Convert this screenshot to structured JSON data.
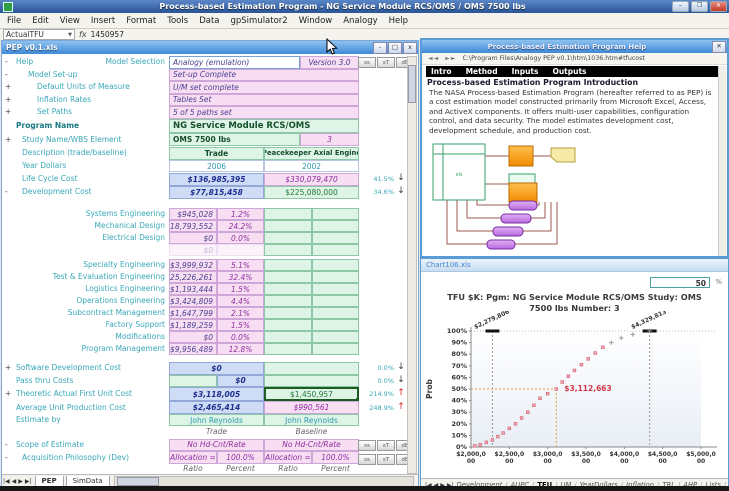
{
  "app": {
    "title": "Process-based Estimation Program - NG Service Module RCS/OMS / OMS 7500 lbs",
    "controls": {
      "minimize": "–",
      "maximize": "❐",
      "close": "✕"
    }
  },
  "menu_items": [
    "File",
    "Edit",
    "View",
    "Insert",
    "Format",
    "Tools",
    "Data",
    "gpSimulator2",
    "Window",
    "Analogy",
    "Help"
  ],
  "formula_bar": {
    "name_box": "ActualTFU",
    "fx_label": "fx",
    "value": "1450957"
  },
  "workbook": {
    "title": "PEP v0.1.xls",
    "controls": {
      "minimize": "-",
      "maximize": "□",
      "close": "x"
    },
    "mini_buttons": [
      "ss",
      "sT",
      "dB"
    ],
    "setup_rows": [
      {
        "prefix": "-",
        "label": "Help",
        "field": "Model Selection",
        "value": "Analogy (emulation)",
        "value2": "Version 3.0"
      },
      {
        "prefix": "-",
        "label": "Model Set-up",
        "value": "Set-up Complete"
      },
      {
        "prefix": "+",
        "label": "Default Units of Measure",
        "value": "U/M set complete"
      },
      {
        "prefix": "+",
        "label": "Inflation Rates",
        "value": "Tables Set"
      },
      {
        "prefix": "+",
        "label": "Set Paths",
        "value": "5 of 5 paths set"
      }
    ],
    "program": {
      "label": "Program Name",
      "value": "NG Service Module RCS/OMS",
      "study_prefix": "+",
      "study_label": "Study Name/WBS Element",
      "study_value": "OMS 7500 lbs",
      "study_number": "3"
    },
    "columns": {
      "description_label": "Description (trade/baseline)",
      "trade": "Trade",
      "baseline": "Peacekeeper Axial Engine",
      "footer_trade": "Trade",
      "footer_baseline": "Baseline"
    },
    "summary_rows": [
      {
        "label": "Year Dollars",
        "trade": "2006",
        "baseline": "2002"
      },
      {
        "label": "Life Cycle Cost",
        "trade": "$136,985,395",
        "baseline": "$330,079,470",
        "pct": "41.5%",
        "dir": "down"
      },
      {
        "prefix": "-",
        "label": "Development Cost",
        "trade": "$77,815,458",
        "baseline": "$225,080,000",
        "pct": "34.6%",
        "dir": "down"
      }
    ],
    "cost_rows": [
      {
        "label": "Systems Engineering",
        "amount": "$945,028",
        "pct": "1.2%"
      },
      {
        "label": "Mechanical Design",
        "amount": "$18,793,552",
        "pct": "24.2%"
      },
      {
        "label": "Electrical Design",
        "amount": "$0",
        "pct": "0.0%"
      },
      {
        "label": "",
        "amount": "$0",
        "pct": "",
        "faint": true
      },
      {
        "label": "Specialty Engineering",
        "amount": "$3,999,932",
        "pct": "5.1%"
      },
      {
        "label": "Test & Evaluation Engineering",
        "amount": "$25,226,261",
        "pct": "32.4%"
      },
      {
        "label": "Logistics Engineering",
        "amount": "$1,193,444",
        "pct": "1.5%"
      },
      {
        "label": "Operations Engineering",
        "amount": "$3,424,809",
        "pct": "4.4%"
      },
      {
        "label": "Subcontract Management",
        "amount": "$1,647,799",
        "pct": "2.1%"
      },
      {
        "label": "Factory Support",
        "amount": "$1,189,259",
        "pct": "1.5%"
      },
      {
        "label": "Modifications",
        "amount": "$0",
        "pct": "0.0%"
      },
      {
        "label": "Program Management",
        "amount": "$9,956,489",
        "pct": "12.8%"
      }
    ],
    "bottom_rows": {
      "software": {
        "prefix": "+",
        "label": "Software Development Cost",
        "value": "$0",
        "pct": "0.0%",
        "dir": "down"
      },
      "pass_thru": {
        "label": "Pass thru Costs",
        "value": "$0",
        "pct": "0.0%",
        "dir": "down"
      },
      "tafu": {
        "prefix": "+",
        "label": "Theoretic Actual First Unit Cost",
        "trade": "$3,118,005",
        "baseline": "$1,450,957",
        "pct": "214.9%",
        "dir": "up"
      },
      "aupc": {
        "label": "Average Unit Production Cost",
        "trade": "$2,465,414",
        "baseline": "$990,561",
        "pct": "248.9%",
        "dir": "up"
      },
      "estimate_by": {
        "label": "Estimate by",
        "trade": "John Reynolds",
        "baseline": "John Reynolds"
      }
    },
    "scope": {
      "prefix": "-",
      "label": "Scope of Estimate",
      "trade": "No Hd-Cnt/Rate",
      "baseline": "No Hd-Cnt/Rate"
    },
    "acquisition": {
      "prefix": "-",
      "label": "Acquisition Philosophy (Dev)",
      "alloc_label": "Allocation =",
      "alloc_value": "100.0%"
    },
    "ratio_footer": [
      "Ratio",
      "Percent",
      "Ratio",
      "Percent"
    ],
    "sheet_tabs": [
      "PEP",
      "SimData"
    ],
    "active_tab": "PEP"
  },
  "help_window": {
    "title": "Process-based Estimation Program Help",
    "address": "C:\\Program Files\\Analogy PEP v0.1\\htm\\1036.htm#tfucost",
    "nav_tabs": [
      "Intro",
      "Method",
      "Inputs",
      "Outputs"
    ],
    "heading": "Process-based Estimation Program Introduction",
    "body": "The NASA Process-based Estimation Program (hereafter referred to as PEP) is a cost estimation model constructed primarily from Microsoft Excel, Access, and ActiveX components. It offers multi-user capabilities, configuration control, and data security. The model estimates development cost, development schedule, and production cost."
  },
  "chart_window": {
    "title": "Chart106.xls",
    "percent_value": "50",
    "percent_suffix": "%",
    "title_line1": "TFU $K: Pgm: NG Service Module RCS/OMS   Study: OMS",
    "title_line2": "7500 lbs   Number: 3",
    "tabs": [
      "Development",
      "AUPC",
      "TFU",
      "UM",
      "YearDollars",
      "Inflation",
      "TRL",
      "AHP",
      "Lists",
      "Devt"
    ],
    "active_tab": "TFU",
    "chart_data": {
      "type": "scatter",
      "title": "TFU $K: Pgm: NG Service Module RCS/OMS  Study: OMS 7500 lbs  Number: 3",
      "xlabel": "",
      "ylabel": "Prob",
      "xlim": [
        2000000,
        5000000
      ],
      "x_ticks": [
        "$2,000,000",
        "$2,500,000",
        "$3,000,000",
        "$3,500,000",
        "$4,000,000",
        "$4,500,000",
        "$5,000,000"
      ],
      "ylim": [
        0,
        100
      ],
      "y_tick_step": 10,
      "points": [
        [
          2050000,
          1
        ],
        [
          2120000,
          2
        ],
        [
          2200000,
          4
        ],
        [
          2279806,
          6
        ],
        [
          2350000,
          9
        ],
        [
          2420000,
          12
        ],
        [
          2500000,
          16
        ],
        [
          2580000,
          20
        ],
        [
          2660000,
          25
        ],
        [
          2740000,
          30
        ],
        [
          2820000,
          36
        ],
        [
          2900000,
          42
        ],
        [
          3000000,
          46
        ],
        [
          3112663,
          50
        ],
        [
          3190000,
          56
        ],
        [
          3270000,
          61
        ],
        [
          3350000,
          66
        ],
        [
          3440000,
          71
        ],
        [
          3530000,
          76
        ],
        [
          3620000,
          81
        ],
        [
          3720000,
          86
        ],
        [
          3830000,
          90
        ],
        [
          3960000,
          94
        ],
        [
          4110000,
          97
        ],
        [
          4329813,
          100
        ]
      ],
      "median": {
        "x": 3112663,
        "p": 50,
        "label": "$3,112,663"
      },
      "bounds": [
        {
          "x": 2279806,
          "label": "$2,279,806"
        },
        {
          "x": 4329813,
          "label": "$4,329,813"
        }
      ]
    }
  }
}
